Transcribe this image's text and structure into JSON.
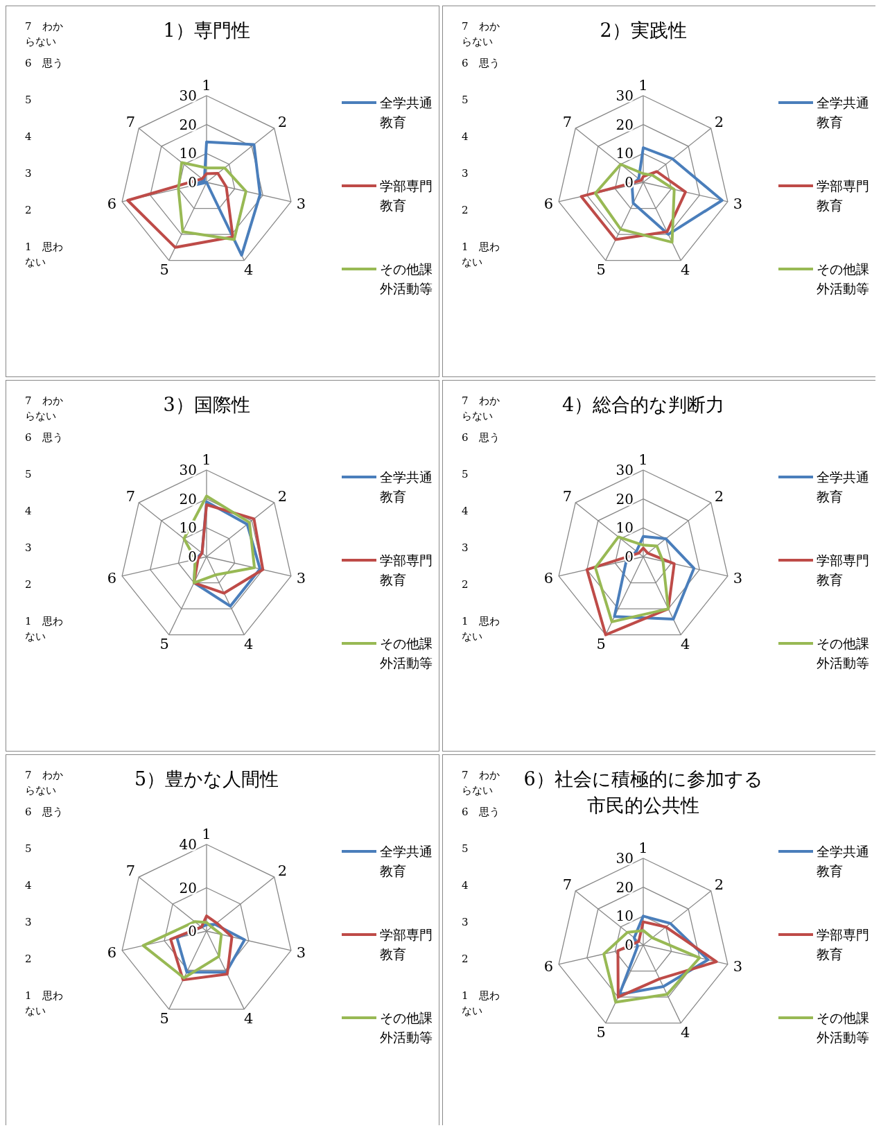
{
  "chart_data": [
    {
      "type": "radar",
      "title": "1）専門性",
      "categories": [
        "1",
        "2",
        "3",
        "4",
        "5",
        "6",
        "7"
      ],
      "ylim": [
        0,
        30
      ],
      "yticks": [
        0,
        10,
        20,
        30
      ],
      "grid": true,
      "legend": "right",
      "annotations": [
        "7　わからない",
        "6　思う",
        "5",
        "4",
        "3",
        "2",
        "1　思わない"
      ],
      "series": [
        {
          "name": "全学共通教育",
          "color": "#4a7ebb",
          "values": [
            14,
            21,
            19,
            28,
            0,
            6,
            1
          ]
        },
        {
          "name": "学部専門教育",
          "color": "#be4b48",
          "values": [
            3,
            5,
            7,
            21,
            25,
            28,
            2
          ]
        },
        {
          "name": "その他課外活動等",
          "color": "#98b954",
          "values": [
            5,
            8,
            14,
            22,
            19,
            10,
            11
          ]
        }
      ]
    },
    {
      "type": "radar",
      "title": "2）実践性",
      "categories": [
        "1",
        "2",
        "3",
        "4",
        "5",
        "6",
        "7"
      ],
      "ylim": [
        0,
        30
      ],
      "yticks": [
        0,
        10,
        20,
        30
      ],
      "grid": true,
      "legend": "right",
      "annotations": [
        "7　わからない",
        "6　思う",
        "5",
        "4",
        "3",
        "2",
        "1　思わない"
      ],
      "series": [
        {
          "name": "全学共通教育",
          "color": "#4a7ebb",
          "values": [
            12,
            13,
            28,
            20,
            8,
            4,
            2
          ]
        },
        {
          "name": "学部専門教育",
          "color": "#be4b48",
          "values": [
            2,
            6,
            15,
            19,
            22,
            22,
            1
          ]
        },
        {
          "name": "その他課外活動等",
          "color": "#98b954",
          "values": [
            3,
            4,
            11,
            23,
            18,
            17,
            10
          ]
        }
      ]
    },
    {
      "type": "radar",
      "title": "3）国際性",
      "categories": [
        "1",
        "2",
        "3",
        "4",
        "5",
        "6",
        "7"
      ],
      "ylim": [
        0,
        30
      ],
      "yticks": [
        0,
        10,
        20,
        30
      ],
      "grid": true,
      "legend": "right",
      "annotations": [
        "7　わからない",
        "6　思う",
        "5",
        "4",
        "3",
        "2",
        "1　思わない"
      ],
      "series": [
        {
          "name": "全学共通教育",
          "color": "#4a7ebb",
          "values": [
            19,
            18,
            19,
            19,
            10,
            4,
            2
          ]
        },
        {
          "name": "学部専門教育",
          "color": "#be4b48",
          "values": [
            18,
            21,
            20,
            14,
            10,
            3,
            2
          ]
        },
        {
          "name": "その他課外活動等",
          "color": "#98b954",
          "values": [
            21,
            19,
            17,
            7,
            10,
            4,
            10
          ]
        }
      ]
    },
    {
      "type": "radar",
      "title": "4）総合的な判断力",
      "categories": [
        "1",
        "2",
        "3",
        "4",
        "5",
        "6",
        "7"
      ],
      "ylim": [
        0,
        30
      ],
      "yticks": [
        0,
        10,
        20,
        30
      ],
      "grid": true,
      "legend": "right",
      "annotations": [
        "7　わからない",
        "6　思う",
        "5",
        "4",
        "3",
        "2",
        "1　思わない"
      ],
      "series": [
        {
          "name": "全学共通教育",
          "color": "#4a7ebb",
          "values": [
            7,
            10,
            18,
            24,
            23,
            6,
            3
          ]
        },
        {
          "name": "学部専門教育",
          "color": "#be4b48",
          "values": [
            3,
            2,
            11,
            20,
            30,
            20,
            2
          ]
        },
        {
          "name": "その他課外活動等",
          "color": "#98b954",
          "values": [
            4,
            6,
            7,
            20,
            25,
            17,
            11
          ]
        }
      ]
    },
    {
      "type": "radar",
      "title": "5）豊かな人間性",
      "categories": [
        "1",
        "2",
        "3",
        "4",
        "5",
        "6",
        "7"
      ],
      "ylim": [
        0,
        40
      ],
      "yticks": [
        0,
        20,
        40
      ],
      "grid": true,
      "legend": "right",
      "annotations": [
        "7　わからない",
        "6　思う",
        "5",
        "4",
        "3",
        "2",
        "1　思わない"
      ],
      "series": [
        {
          "name": "全学共通教育",
          "color": "#4a7ebb",
          "values": [
            3,
            5,
            18,
            21,
            21,
            14,
            3
          ]
        },
        {
          "name": "学部専門教育",
          "color": "#be4b48",
          "values": [
            7,
            6,
            12,
            22,
            25,
            17,
            3
          ]
        },
        {
          "name": "その他課外活動等",
          "color": "#98b954",
          "values": [
            4,
            3,
            7,
            13,
            24,
            30,
            7
          ]
        }
      ]
    },
    {
      "type": "radar",
      "title": "6）社会に積極的に参加する市民的公共性",
      "categories": [
        "1",
        "2",
        "3",
        "4",
        "5",
        "6",
        "7"
      ],
      "ylim": [
        0,
        30
      ],
      "yticks": [
        0,
        10,
        20,
        30
      ],
      "grid": true,
      "legend": "right",
      "annotations": [
        "7　わからない",
        "6　思う",
        "5",
        "4",
        "3",
        "2",
        "1　思わない"
      ],
      "series": [
        {
          "name": "全学共通教育",
          "color": "#4a7ebb",
          "values": [
            10,
            12,
            23,
            16,
            19,
            2,
            4
          ]
        },
        {
          "name": "学部専門教育",
          "color": "#be4b48",
          "values": [
            8,
            10,
            26,
            13,
            20,
            9,
            2
          ]
        },
        {
          "name": "その他課外活動等",
          "color": "#98b954",
          "values": [
            5,
            4,
            20,
            19,
            22,
            14,
            7
          ]
        }
      ]
    }
  ]
}
